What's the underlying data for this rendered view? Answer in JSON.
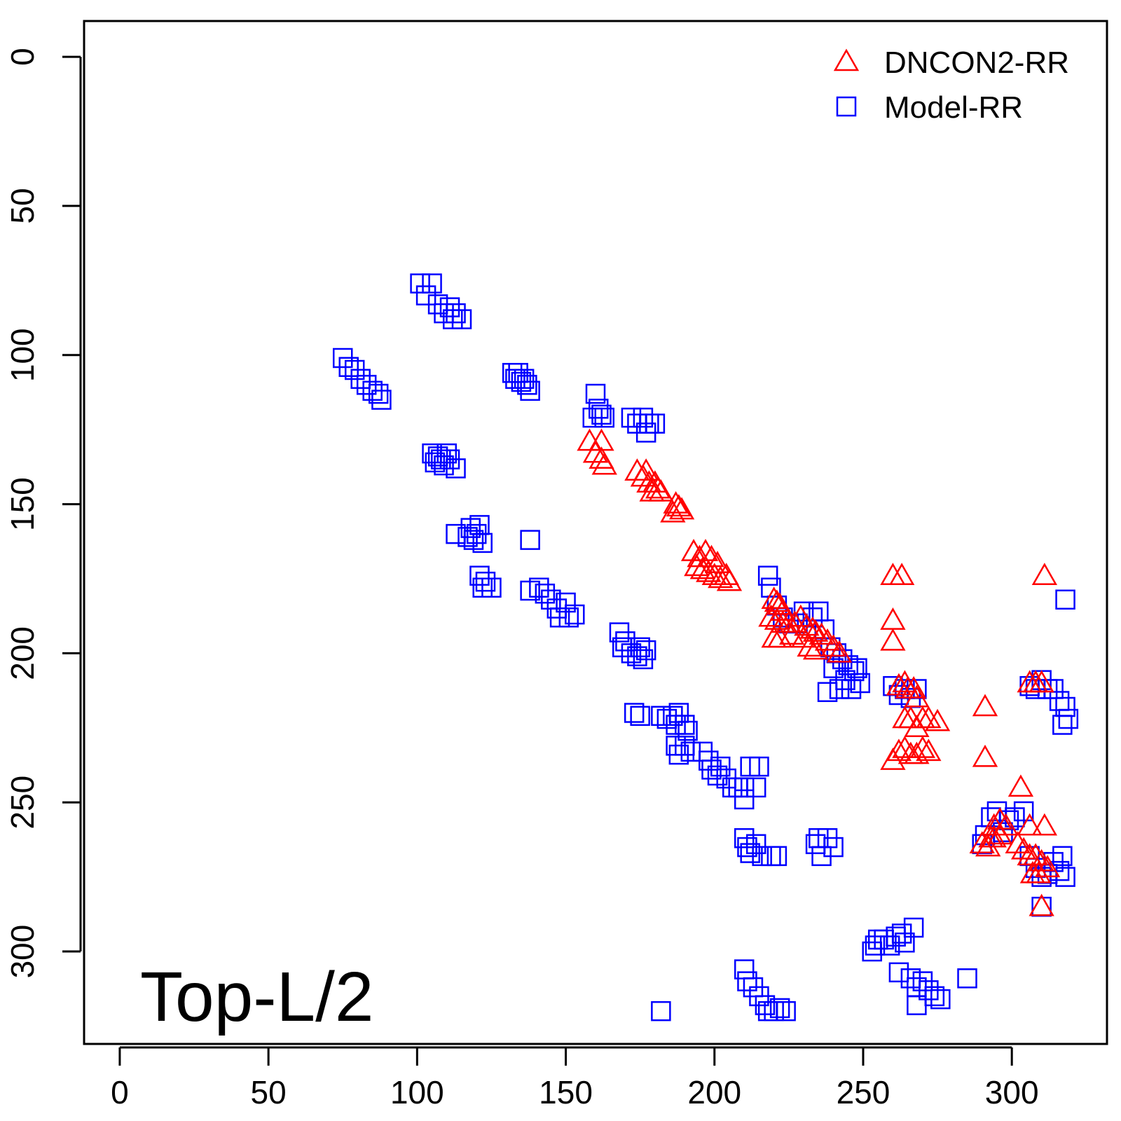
{
  "chart_data": {
    "type": "scatter",
    "title": "",
    "xlabel": "",
    "ylabel": "",
    "xlim": [
      -12,
      332
    ],
    "ylim": [
      -12,
      331
    ],
    "y_reversed": true,
    "xticks": [
      0,
      50,
      100,
      150,
      200,
      250,
      300
    ],
    "yticks": [
      0,
      50,
      100,
      150,
      200,
      250,
      300
    ],
    "grid": false,
    "legend_position": "top-right",
    "annotation": "Top-L/2",
    "series": [
      {
        "name": "DNCON2-RR",
        "marker": "triangle",
        "color": "#ff0000",
        "points": [
          [
            158,
            129
          ],
          [
            162,
            129
          ],
          [
            160,
            133
          ],
          [
            162,
            135
          ],
          [
            163,
            137
          ],
          [
            174,
            139
          ],
          [
            177,
            139
          ],
          [
            176,
            141
          ],
          [
            178,
            143
          ],
          [
            180,
            143
          ],
          [
            181,
            145
          ],
          [
            179,
            146
          ],
          [
            182,
            146
          ],
          [
            187,
            150
          ],
          [
            188,
            151
          ],
          [
            189,
            152
          ],
          [
            186,
            153
          ],
          [
            193,
            166
          ],
          [
            195,
            168
          ],
          [
            197,
            166
          ],
          [
            199,
            168
          ],
          [
            201,
            170
          ],
          [
            194,
            171
          ],
          [
            196,
            172
          ],
          [
            198,
            173
          ],
          [
            200,
            174
          ],
          [
            202,
            175
          ],
          [
            204,
            174
          ],
          [
            205,
            176
          ],
          [
            220,
            182
          ],
          [
            221,
            183
          ],
          [
            222,
            184
          ],
          [
            223,
            186
          ],
          [
            219,
            188
          ],
          [
            221,
            189
          ],
          [
            223,
            190
          ],
          [
            225,
            190
          ],
          [
            227,
            190
          ],
          [
            229,
            188
          ],
          [
            231,
            191
          ],
          [
            233,
            192
          ],
          [
            234,
            193
          ],
          [
            236,
            194
          ],
          [
            238,
            196
          ],
          [
            240,
            198
          ],
          [
            242,
            200
          ],
          [
            220,
            195
          ],
          [
            222,
            195
          ],
          [
            226,
            194
          ],
          [
            230,
            195
          ],
          [
            232,
            198
          ],
          [
            234,
            199
          ],
          [
            260,
            174
          ],
          [
            263,
            174
          ],
          [
            260,
            189
          ],
          [
            260,
            196
          ],
          [
            262,
            211
          ],
          [
            264,
            210
          ],
          [
            265,
            212
          ],
          [
            267,
            212
          ],
          [
            268,
            215
          ],
          [
            264,
            222
          ],
          [
            266,
            222
          ],
          [
            270,
            222
          ],
          [
            272,
            222
          ],
          [
            275,
            223
          ],
          [
            268,
            225
          ],
          [
            260,
            236
          ],
          [
            262,
            233
          ],
          [
            264,
            232
          ],
          [
            266,
            234
          ],
          [
            268,
            234
          ],
          [
            270,
            232
          ],
          [
            272,
            233
          ],
          [
            291,
            218
          ],
          [
            291,
            235
          ],
          [
            306,
            210
          ],
          [
            308,
            210
          ],
          [
            310,
            210
          ],
          [
            311,
            174
          ],
          [
            303,
            245
          ],
          [
            293,
            262
          ],
          [
            294,
            258
          ],
          [
            296,
            256
          ],
          [
            298,
            258
          ],
          [
            290,
            264
          ],
          [
            292,
            265
          ],
          [
            294,
            262
          ],
          [
            296,
            261
          ],
          [
            302,
            264
          ],
          [
            304,
            266
          ],
          [
            306,
            258
          ],
          [
            306,
            268
          ],
          [
            308,
            268
          ],
          [
            310,
            270
          ],
          [
            312,
            272
          ],
          [
            307,
            274
          ],
          [
            309,
            274
          ],
          [
            311,
            258
          ],
          [
            310,
            285
          ]
        ]
      },
      {
        "name": "Model-RR",
        "marker": "square",
        "color": "#0000ff",
        "points": [
          [
            101,
            76
          ],
          [
            103,
            80
          ],
          [
            105,
            76
          ],
          [
            107,
            83
          ],
          [
            109,
            86
          ],
          [
            111,
            84
          ],
          [
            112,
            88
          ],
          [
            113,
            86
          ],
          [
            115,
            88
          ],
          [
            75,
            101
          ],
          [
            77,
            104
          ],
          [
            79,
            105
          ],
          [
            81,
            108
          ],
          [
            83,
            110
          ],
          [
            85,
            112
          ],
          [
            87,
            113
          ],
          [
            88,
            115
          ],
          [
            105,
            133
          ],
          [
            106,
            136
          ],
          [
            107,
            134
          ],
          [
            108,
            135
          ],
          [
            109,
            137
          ],
          [
            110,
            133
          ],
          [
            111,
            135
          ],
          [
            113,
            138
          ],
          [
            132,
            106
          ],
          [
            133,
            108
          ],
          [
            134,
            106
          ],
          [
            135,
            109
          ],
          [
            136,
            108
          ],
          [
            137,
            110
          ],
          [
            138,
            112
          ],
          [
            160,
            113
          ],
          [
            161,
            118
          ],
          [
            162,
            120
          ],
          [
            163,
            121
          ],
          [
            159,
            121
          ],
          [
            172,
            121
          ],
          [
            174,
            123
          ],
          [
            176,
            121
          ],
          [
            177,
            126
          ],
          [
            178,
            123
          ],
          [
            180,
            123
          ],
          [
            113,
            160
          ],
          [
            117,
            161
          ],
          [
            118,
            158
          ],
          [
            119,
            162
          ],
          [
            120,
            160
          ],
          [
            121,
            157
          ],
          [
            122,
            163
          ],
          [
            138,
            162
          ],
          [
            121,
            174
          ],
          [
            122,
            178
          ],
          [
            123,
            176
          ],
          [
            125,
            178
          ],
          [
            138,
            179
          ],
          [
            141,
            178
          ],
          [
            143,
            180
          ],
          [
            145,
            182
          ],
          [
            147,
            185
          ],
          [
            148,
            188
          ],
          [
            150,
            183
          ],
          [
            151,
            188
          ],
          [
            153,
            187
          ],
          [
            168,
            193
          ],
          [
            169,
            198
          ],
          [
            170,
            196
          ],
          [
            172,
            200
          ],
          [
            174,
            201
          ],
          [
            175,
            198
          ],
          [
            176,
            202
          ],
          [
            177,
            199
          ],
          [
            173,
            220
          ],
          [
            175,
            221
          ],
          [
            182,
            221
          ],
          [
            184,
            222
          ],
          [
            186,
            221
          ],
          [
            187,
            224
          ],
          [
            188,
            220
          ],
          [
            190,
            224
          ],
          [
            191,
            226
          ],
          [
            187,
            231
          ],
          [
            188,
            234
          ],
          [
            190,
            231
          ],
          [
            192,
            233
          ],
          [
            196,
            233
          ],
          [
            198,
            236
          ],
          [
            199,
            239
          ],
          [
            201,
            241
          ],
          [
            202,
            238
          ],
          [
            204,
            242
          ],
          [
            206,
            245
          ],
          [
            208,
            245
          ],
          [
            210,
            245
          ],
          [
            212,
            238
          ],
          [
            214,
            245
          ],
          [
            215,
            238
          ],
          [
            210,
            249
          ],
          [
            218,
            174
          ],
          [
            219,
            178
          ],
          [
            221,
            184
          ],
          [
            223,
            188
          ],
          [
            225,
            190
          ],
          [
            228,
            190
          ],
          [
            230,
            186
          ],
          [
            233,
            188
          ],
          [
            235,
            186
          ],
          [
            237,
            192
          ],
          [
            239,
            198
          ],
          [
            241,
            200
          ],
          [
            243,
            202
          ],
          [
            245,
            204
          ],
          [
            247,
            206
          ],
          [
            249,
            210
          ],
          [
            240,
            205
          ],
          [
            242,
            212
          ],
          [
            244,
            209
          ],
          [
            246,
            212
          ],
          [
            248,
            205
          ],
          [
            238,
            213
          ],
          [
            210,
            262
          ],
          [
            211,
            265
          ],
          [
            212,
            267
          ],
          [
            214,
            264
          ],
          [
            216,
            268
          ],
          [
            219,
            268
          ],
          [
            221,
            268
          ],
          [
            234,
            264
          ],
          [
            235,
            262
          ],
          [
            236,
            268
          ],
          [
            238,
            262
          ],
          [
            240,
            265
          ],
          [
            253,
            300
          ],
          [
            254,
            298
          ],
          [
            255,
            296
          ],
          [
            257,
            296
          ],
          [
            259,
            298
          ],
          [
            261,
            295
          ],
          [
            263,
            294
          ],
          [
            264,
            297
          ],
          [
            267,
            292
          ],
          [
            260,
            211
          ],
          [
            262,
            214
          ],
          [
            264,
            212
          ],
          [
            266,
            215
          ],
          [
            268,
            212
          ],
          [
            262,
            307
          ],
          [
            266,
            309
          ],
          [
            268,
            312
          ],
          [
            270,
            310
          ],
          [
            272,
            313
          ],
          [
            274,
            315
          ],
          [
            276,
            316
          ],
          [
            268,
            318
          ],
          [
            285,
            309
          ],
          [
            210,
            306
          ],
          [
            211,
            310
          ],
          [
            213,
            312
          ],
          [
            215,
            315
          ],
          [
            217,
            318
          ],
          [
            218,
            320
          ],
          [
            220,
            320
          ],
          [
            222,
            319
          ],
          [
            224,
            320
          ],
          [
            182,
            320
          ],
          [
            290,
            264
          ],
          [
            291,
            261
          ],
          [
            293,
            255
          ],
          [
            295,
            253
          ],
          [
            297,
            260
          ],
          [
            299,
            256
          ],
          [
            301,
            255
          ],
          [
            304,
            253
          ],
          [
            306,
            211
          ],
          [
            308,
            212
          ],
          [
            310,
            209
          ],
          [
            312,
            212
          ],
          [
            314,
            212
          ],
          [
            316,
            216
          ],
          [
            318,
            218
          ],
          [
            319,
            222
          ],
          [
            317,
            224
          ],
          [
            318,
            182
          ],
          [
            306,
            268
          ],
          [
            308,
            272
          ],
          [
            310,
            275
          ],
          [
            312,
            274
          ],
          [
            314,
            270
          ],
          [
            316,
            273
          ],
          [
            317,
            268
          ],
          [
            318,
            275
          ],
          [
            310,
            285
          ]
        ]
      }
    ]
  }
}
